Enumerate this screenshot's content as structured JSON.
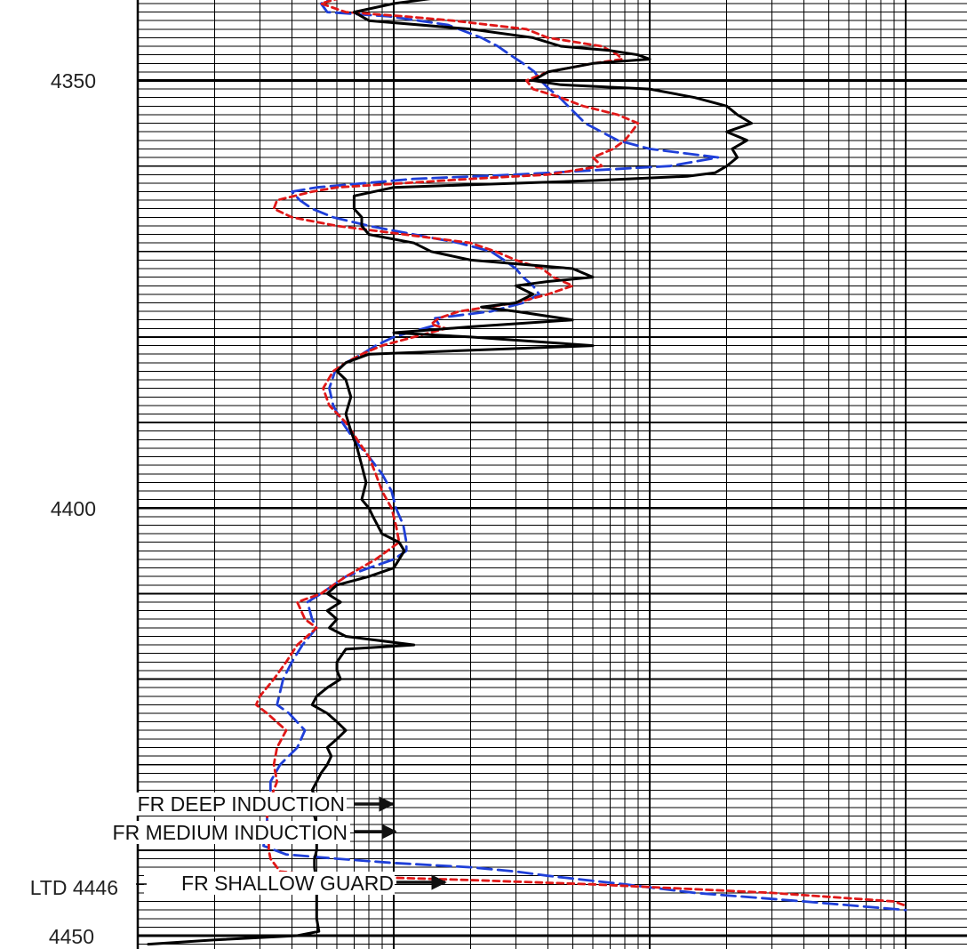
{
  "colors": {
    "background": "#ffffff",
    "grid": "#000000",
    "deep": "#1f3fd8",
    "medium": "#e01818",
    "shallow": "#000000"
  },
  "depth_labels": {
    "d4350": "4350",
    "d4400": "4400",
    "ltd": "LTD 4446",
    "d4450": "4450"
  },
  "curve_labels": {
    "deep": "FR DEEP INDUCTION",
    "medium": "FR MEDIUM INDUCTION",
    "shallow": "FR SHALLOW GUARD"
  },
  "chart_data": {
    "type": "line",
    "y_axis": {
      "quantity": "depth",
      "range": [
        4340,
        4451
      ],
      "direction": "down",
      "labeled_ticks": [
        4350,
        4400,
        4450
      ]
    },
    "x_axis": {
      "scale": "log",
      "decades": 3
    },
    "grid": true,
    "series": [
      {
        "name": "FR DEEP INDUCTION",
        "style": "dashed",
        "color": "#1f3fd8",
        "points": [
          [
            4340.0,
            6.2
          ],
          [
            4341.0,
            5.2
          ],
          [
            4342.0,
            5.5
          ],
          [
            4342.5,
            9.6
          ],
          [
            4343.0,
            12.5
          ],
          [
            4343.5,
            16.3
          ],
          [
            4345.0,
            22.0
          ],
          [
            4346.0,
            25.5
          ],
          [
            4347.0,
            28.5
          ],
          [
            4348.0,
            32.0
          ],
          [
            4349.0,
            35.5
          ],
          [
            4350.0,
            37.5
          ],
          [
            4351.0,
            40.5
          ],
          [
            4352.0,
            44.5
          ],
          [
            4353.0,
            48.0
          ],
          [
            4355.0,
            56.0
          ],
          [
            4357.0,
            75.0
          ],
          [
            4358.0,
            100.0
          ],
          [
            4359.0,
            185.0
          ],
          [
            4360.0,
            120.0
          ],
          [
            4361.0,
            30.0
          ],
          [
            4361.5,
            12.0
          ],
          [
            4362.5,
            5.0
          ],
          [
            4363.0,
            4.0
          ],
          [
            4364.0,
            4.3
          ],
          [
            4365.0,
            4.8
          ],
          [
            4366.0,
            5.8
          ],
          [
            4367.0,
            8.0
          ],
          [
            4368.0,
            12.0
          ],
          [
            4369.0,
            18.0
          ],
          [
            4370.0,
            24.0
          ],
          [
            4371.0,
            27.0
          ],
          [
            4372.0,
            30.0
          ],
          [
            4373.0,
            32.0
          ],
          [
            4374.0,
            35.0
          ],
          [
            4375.0,
            37.0
          ],
          [
            4376.0,
            32.0
          ],
          [
            4377.0,
            24.0
          ],
          [
            4377.8,
            14.5
          ],
          [
            4378.5,
            15.0
          ],
          [
            4380.0,
            10.0
          ],
          [
            4381.0,
            8.5
          ],
          [
            4382.0,
            7.5
          ],
          [
            4383.0,
            6.5
          ],
          [
            4384.0,
            5.9
          ],
          [
            4386.0,
            5.6
          ],
          [
            4388.0,
            5.8
          ],
          [
            4390.0,
            6.3
          ],
          [
            4392.0,
            7.0
          ],
          [
            4394.0,
            8.0
          ],
          [
            4396.0,
            9.0
          ],
          [
            4398.0,
            9.8
          ],
          [
            4400.0,
            10.2
          ],
          [
            4402.0,
            10.9
          ],
          [
            4404.0,
            11.2
          ],
          [
            4405.0,
            11.2
          ],
          [
            4406.0,
            10.0
          ],
          [
            4407.0,
            8.0
          ],
          [
            4408.0,
            6.5
          ],
          [
            4410.0,
            5.2
          ],
          [
            4411.0,
            4.6
          ],
          [
            4413.0,
            4.8
          ],
          [
            4414.0,
            5.0
          ],
          [
            4416.0,
            4.4
          ],
          [
            4418.0,
            4.0
          ],
          [
            4420.0,
            3.7
          ],
          [
            4423.0,
            3.5
          ],
          [
            4424.0,
            3.9
          ],
          [
            4426.0,
            4.5
          ],
          [
            4428.0,
            4.2
          ],
          [
            4430.0,
            3.6
          ],
          [
            4432.0,
            3.3
          ],
          [
            4434.0,
            3.3
          ],
          [
            4436.0,
            3.2
          ],
          [
            4437.0,
            3.2
          ],
          [
            4439.5,
            3.1
          ],
          [
            4440.5,
            3.8
          ],
          [
            4441.0,
            6.0
          ],
          [
            4441.5,
            10.0
          ],
          [
            4442.0,
            20.0
          ],
          [
            4442.5,
            30.0
          ],
          [
            4443.0,
            40.0
          ],
          [
            4444.0,
            80.0
          ],
          [
            4445.0,
            150.0
          ],
          [
            4446.0,
            400.0
          ],
          [
            4447.0,
            1000.0
          ]
        ]
      },
      {
        "name": "FR MEDIUM INDUCTION",
        "style": "dashed",
        "color": "#e01818",
        "points": [
          [
            4340.0,
            6.8
          ],
          [
            4341.0,
            5.2
          ],
          [
            4342.0,
            6.5
          ],
          [
            4342.5,
            11.0
          ],
          [
            4343.0,
            17.0
          ],
          [
            4344.0,
            33.0
          ],
          [
            4345.0,
            40.0
          ],
          [
            4346.0,
            65.0
          ],
          [
            4347.0,
            75.0
          ],
          [
            4347.5,
            78.0
          ],
          [
            4348.0,
            60.0
          ],
          [
            4349.0,
            40.0
          ],
          [
            4350.0,
            33.0
          ],
          [
            4351.0,
            35.0
          ],
          [
            4352.0,
            45.0
          ],
          [
            4353.0,
            55.0
          ],
          [
            4354.0,
            75.0
          ],
          [
            4355.0,
            90.0
          ],
          [
            4356.0,
            85.0
          ],
          [
            4357.0,
            80.0
          ],
          [
            4358.0,
            72.0
          ],
          [
            4359.0,
            60.0
          ],
          [
            4360.0,
            65.0
          ],
          [
            4361.0,
            40.0
          ],
          [
            4361.5,
            20.0
          ],
          [
            4362.5,
            6.0
          ],
          [
            4363.0,
            4.8
          ],
          [
            4364.0,
            3.5
          ],
          [
            4365.0,
            3.4
          ],
          [
            4366.0,
            4.0
          ],
          [
            4367.0,
            6.0
          ],
          [
            4368.0,
            11.0
          ],
          [
            4369.0,
            20.0
          ],
          [
            4370.0,
            25.0
          ],
          [
            4371.0,
            30.0
          ],
          [
            4372.0,
            38.0
          ],
          [
            4373.0,
            42.0
          ],
          [
            4374.0,
            50.0
          ],
          [
            4375.0,
            40.0
          ],
          [
            4376.0,
            30.0
          ],
          [
            4377.0,
            18.0
          ],
          [
            4377.8,
            15.0
          ],
          [
            4378.5,
            14.0
          ],
          [
            4379.0,
            16.0
          ],
          [
            4380.0,
            12.0
          ],
          [
            4381.0,
            9.0
          ],
          [
            4382.0,
            7.5
          ],
          [
            4383.0,
            6.5
          ],
          [
            4384.0,
            5.8
          ],
          [
            4386.0,
            5.3
          ],
          [
            4388.0,
            5.6
          ],
          [
            4390.0,
            6.5
          ],
          [
            4392.0,
            7.2
          ],
          [
            4394.0,
            8.0
          ],
          [
            4396.0,
            8.5
          ],
          [
            4398.0,
            9.0
          ],
          [
            4400.0,
            9.8
          ],
          [
            4402.0,
            10.2
          ],
          [
            4404.0,
            10.5
          ],
          [
            4406.0,
            8.5
          ],
          [
            4408.0,
            6.5
          ],
          [
            4410.0,
            5.2
          ],
          [
            4411.0,
            4.2
          ],
          [
            4413.0,
            4.5
          ],
          [
            4414.0,
            5.0
          ],
          [
            4416.0,
            4.2
          ],
          [
            4418.0,
            3.8
          ],
          [
            4420.0,
            3.4
          ],
          [
            4422.0,
            3.0
          ],
          [
            4423.0,
            2.9
          ],
          [
            4424.0,
            3.2
          ],
          [
            4426.0,
            3.8
          ],
          [
            4428.0,
            3.5
          ],
          [
            4430.0,
            3.4
          ],
          [
            4432.0,
            3.5
          ],
          [
            4434.0,
            3.3
          ],
          [
            4436.0,
            3.2
          ],
          [
            4438.0,
            3.25
          ],
          [
            4440.0,
            3.25
          ],
          [
            4441.0,
            3.3
          ],
          [
            4442.5,
            3.6
          ],
          [
            4443.0,
            5.5
          ],
          [
            4443.5,
            20.0
          ],
          [
            4444.0,
            60.0
          ],
          [
            4445.0,
            300.0
          ],
          [
            4446.0,
            900.0
          ],
          [
            4446.5,
            1000.0
          ]
        ]
      },
      {
        "name": "FR SHALLOW GUARD",
        "style": "solid",
        "color": "#000000",
        "points": [
          [
            4340.0,
            18.0
          ],
          [
            4341.0,
            10.0
          ],
          [
            4342.0,
            7.0
          ],
          [
            4343.0,
            8.0
          ],
          [
            4344.0,
            20.0
          ],
          [
            4345.0,
            35.0
          ],
          [
            4346.0,
            45.0
          ],
          [
            4346.5,
            70.0
          ],
          [
            4347.0,
            90.0
          ],
          [
            4347.5,
            100.0
          ],
          [
            4348.0,
            60.0
          ],
          [
            4349.0,
            40.0
          ],
          [
            4350.0,
            35.0
          ],
          [
            4350.5,
            45.0
          ],
          [
            4351.0,
            100.0
          ],
          [
            4352.0,
            150.0
          ],
          [
            4353.0,
            200.0
          ],
          [
            4354.0,
            220.0
          ],
          [
            4355.0,
            250.0
          ],
          [
            4356.0,
            200.0
          ],
          [
            4357.0,
            240.0
          ],
          [
            4358.0,
            210.0
          ],
          [
            4359.0,
            220.0
          ],
          [
            4360.0,
            200.0
          ],
          [
            4360.8,
            180.0
          ],
          [
            4361.2,
            140.0
          ],
          [
            4361.7,
            60.0
          ],
          [
            4362.5,
            10.0
          ],
          [
            4363.5,
            7.0
          ],
          [
            4365.0,
            7.0
          ],
          [
            4366.0,
            7.5
          ],
          [
            4367.0,
            7.5
          ],
          [
            4368.0,
            8.0
          ],
          [
            4369.0,
            12.0
          ],
          [
            4370.0,
            14.0
          ],
          [
            4371.0,
            20.0
          ],
          [
            4372.0,
            50.0
          ],
          [
            4373.0,
            60.0
          ],
          [
            4373.5,
            40.0
          ],
          [
            4374.0,
            30.0
          ],
          [
            4375.0,
            35.0
          ],
          [
            4376.0,
            30.0
          ],
          [
            4376.5,
            22.0
          ],
          [
            4377.0,
            30.0
          ],
          [
            4378.0,
            50.0
          ],
          [
            4378.8,
            20.0
          ],
          [
            4379.5,
            10.0
          ],
          [
            4380.0,
            20.0
          ],
          [
            4381.0,
            60.0
          ],
          [
            4382.0,
            8.0
          ],
          [
            4383.0,
            6.5
          ],
          [
            4384.0,
            6.0
          ],
          [
            4385.0,
            6.5
          ],
          [
            4387.0,
            6.8
          ],
          [
            4389.0,
            6.5
          ],
          [
            4391.0,
            6.8
          ],
          [
            4393.0,
            7.2
          ],
          [
            4395.0,
            7.5
          ],
          [
            4397.0,
            7.8
          ],
          [
            4399.0,
            7.5
          ],
          [
            4400.0,
            8.0
          ],
          [
            4401.0,
            8.3
          ],
          [
            4403.0,
            9.0
          ],
          [
            4404.0,
            10.5
          ],
          [
            4405.0,
            11.0
          ],
          [
            4406.0,
            10.5
          ],
          [
            4407.0,
            10.0
          ],
          [
            4408.0,
            8.0
          ],
          [
            4409.0,
            6.0
          ],
          [
            4410.0,
            5.5
          ],
          [
            4411.0,
            6.2
          ],
          [
            4412.0,
            5.5
          ],
          [
            4413.0,
            6.0
          ],
          [
            4414.0,
            5.6
          ],
          [
            4415.0,
            6.5
          ],
          [
            4416.0,
            12.0
          ],
          [
            4416.5,
            6.5
          ],
          [
            4418.0,
            6.0
          ],
          [
            4419.0,
            6.0
          ],
          [
            4420.0,
            6.2
          ],
          [
            4421.0,
            5.5
          ],
          [
            4422.0,
            5.0
          ],
          [
            4423.0,
            4.8
          ],
          [
            4424.0,
            5.5
          ],
          [
            4425.0,
            6.0
          ],
          [
            4426.0,
            6.5
          ],
          [
            4427.0,
            6.0
          ],
          [
            4428.0,
            5.5
          ],
          [
            4429.0,
            5.7
          ],
          [
            4430.0,
            5.5
          ],
          [
            4431.0,
            5.2
          ],
          [
            4432.0,
            5.0
          ],
          [
            4433.0,
            4.8
          ],
          [
            4434.0,
            5.0
          ],
          [
            4435.0,
            5.1
          ],
          [
            4436.0,
            4.9
          ],
          [
            4437.0,
            5.0
          ],
          [
            4438.0,
            5.0
          ],
          [
            4439.0,
            5.0
          ],
          [
            4440.0,
            5.0
          ],
          [
            4441.0,
            4.9
          ],
          [
            4442.0,
            4.9
          ],
          [
            4444.0,
            5.0
          ],
          [
            4446.0,
            5.0
          ],
          [
            4448.0,
            5.0
          ],
          [
            4449.5,
            5.1
          ],
          [
            4450.0,
            4.2
          ],
          [
            4450.5,
            2.0
          ],
          [
            4451.0,
            1.1
          ]
        ]
      }
    ],
    "annotations": [
      "FR DEEP INDUCTION",
      "FR MEDIUM INDUCTION",
      "FR SHALLOW GUARD",
      "LTD 4446"
    ]
  }
}
